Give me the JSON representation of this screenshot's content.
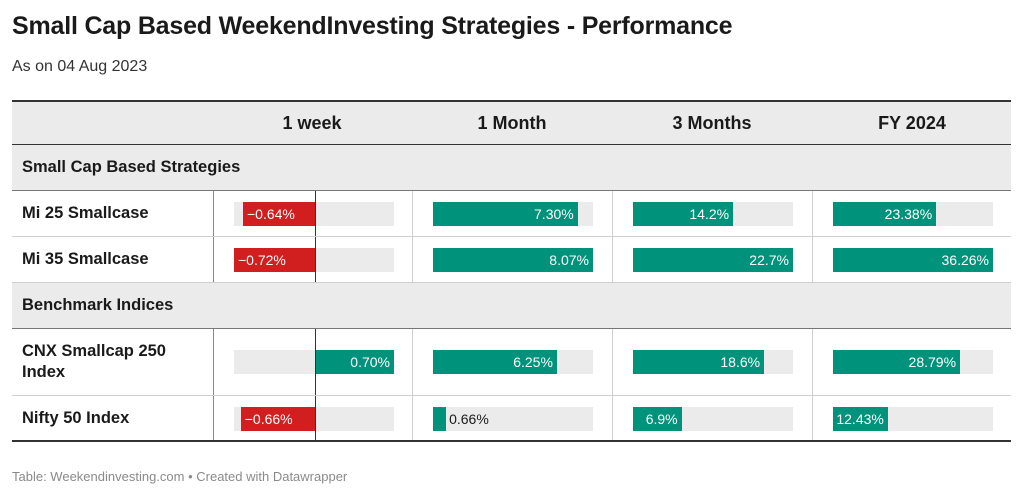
{
  "title": "Small Cap Based WeekendInvesting Strategies - Performance",
  "subtitle": "As on 04 Aug 2023",
  "columns": [
    "1 week",
    "1 Month",
    "3 Months",
    "FY 2024"
  ],
  "footer": "Table: Weekendinvesting.com • Created with Datawrapper",
  "colors": {
    "positive": "#00927a",
    "negative": "#d11e1e",
    "track": "#ebebeb",
    "header_bg": "#ebebeb"
  },
  "chart_data": {
    "type": "table",
    "title": "Small Cap Based WeekendInvesting Strategies - Performance",
    "subtitle": "As on 04 Aug 2023",
    "columns": [
      "1 week",
      "1 Month",
      "3 Months",
      "FY 2024"
    ],
    "groups": [
      {
        "name": "Small Cap Based Strategies",
        "rows": [
          {
            "name": "Mi 25 Smallcase",
            "values": [
              -0.64,
              7.3,
              14.2,
              23.38
            ],
            "labels": [
              "−0.64%",
              "7.30%",
              "14.2%",
              "23.38%"
            ]
          },
          {
            "name": "Mi 35 Smallcase",
            "values": [
              -0.72,
              8.07,
              22.7,
              36.26
            ],
            "labels": [
              "−0.72%",
              "8.07%",
              "22.7%",
              "36.26%"
            ]
          }
        ]
      },
      {
        "name": "Benchmark Indices",
        "rows": [
          {
            "name": "CNX Smallcap 250 Index",
            "values": [
              0.7,
              6.25,
              18.6,
              28.79
            ],
            "labels": [
              "0.70%",
              "6.25%",
              "18.6%",
              "28.79%"
            ]
          },
          {
            "name": "Nifty 50 Index",
            "values": [
              -0.66,
              0.66,
              6.9,
              12.43
            ],
            "labels": [
              "−0.66%",
              "0.66%",
              "6.9%",
              "12.43%"
            ]
          }
        ]
      }
    ],
    "column_ranges": [
      [
        -0.72,
        0.7
      ],
      [
        0,
        8.07
      ],
      [
        0,
        22.7
      ],
      [
        0,
        36.26
      ]
    ]
  }
}
